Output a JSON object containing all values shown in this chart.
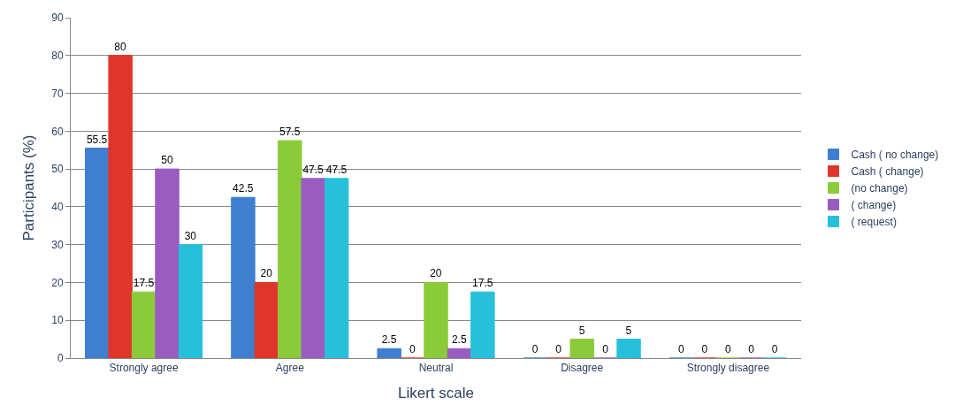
{
  "chart_data": {
    "type": "bar",
    "xlabel": "Likert scale",
    "ylabel": "Participants (%)",
    "categories": [
      "Strongly agree",
      "Agree",
      "Neutral",
      "Disagree",
      "Strongly disagree"
    ],
    "series": [
      {
        "name": "Cash ( no change)",
        "color": "#3f7fd0",
        "values": [
          55.5,
          42.5,
          2.5,
          0,
          0
        ]
      },
      {
        "name": "Cash ( change)",
        "color": "#e0352b",
        "values": [
          80,
          20,
          0,
          0,
          0
        ]
      },
      {
        "name": "(no change)",
        "color": "#8bcb3a",
        "values": [
          17.5,
          57.5,
          20,
          5,
          0
        ]
      },
      {
        "name": "( change)",
        "color": "#9a5cc0",
        "values": [
          50,
          47.5,
          2.5,
          0,
          0
        ]
      },
      {
        "name": "( request)",
        "color": "#27bfdc",
        "values": [
          30,
          47.5,
          17.5,
          5,
          0
        ]
      }
    ],
    "ylim": [
      0,
      90
    ],
    "yticks": [
      0,
      10,
      20,
      30,
      40,
      50,
      60,
      70,
      80,
      90
    ],
    "grid": "y",
    "legend": "right",
    "data_labels": true
  }
}
